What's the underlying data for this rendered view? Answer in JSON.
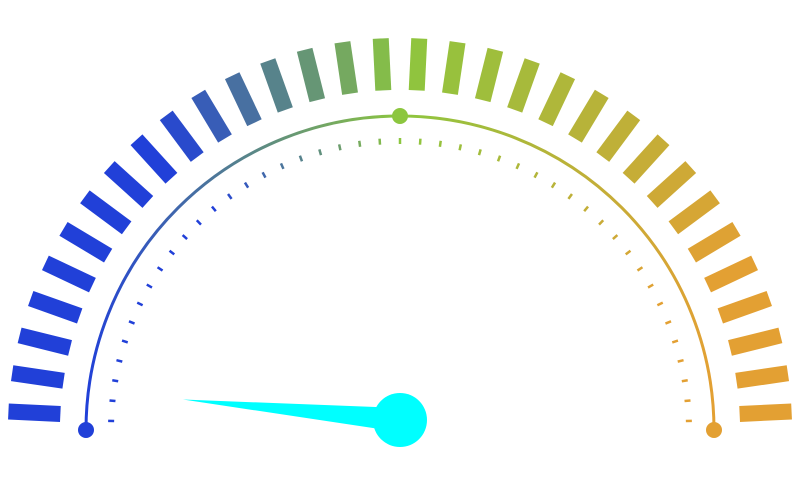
{
  "gauge": {
    "value_fraction": 0.03,
    "segments": 32,
    "minor_ticks": 45,
    "colors": {
      "start": "#2140d8",
      "mid": "#8cc63f",
      "end": "#e3a033",
      "needle": "#00ffff"
    }
  }
}
